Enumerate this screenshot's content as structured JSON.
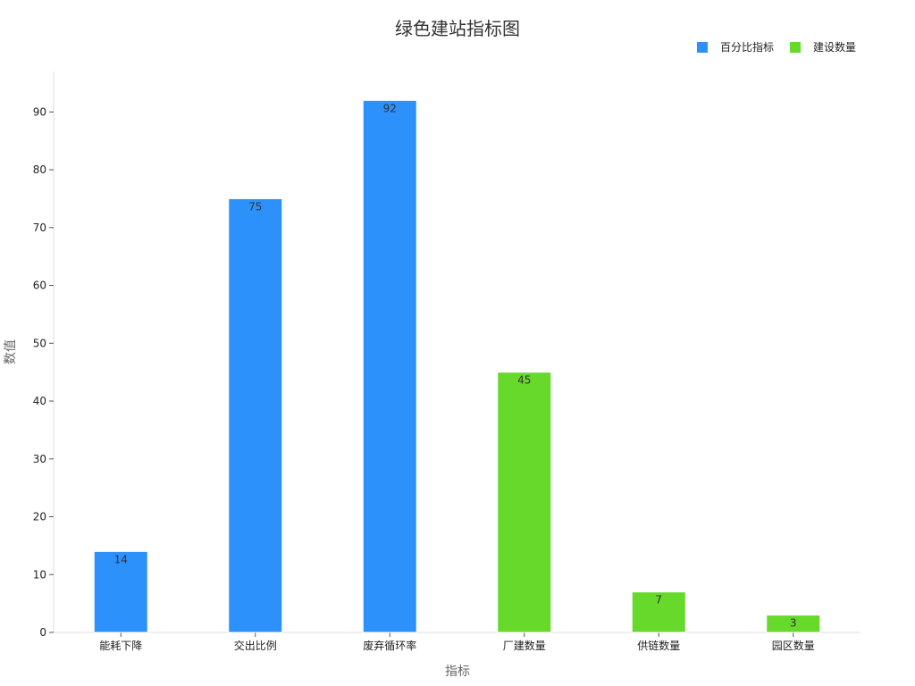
{
  "chart_data": {
    "type": "bar",
    "title": "绿色建站指标图",
    "xlabel": "指标",
    "ylabel": "数值",
    "categories": [
      "能耗下降",
      "交出比例",
      "废弃循环率",
      "厂建数量",
      "供链数量",
      "园区数量"
    ],
    "series": [
      {
        "name": "百分比指标",
        "color": "#2d91fb",
        "values": [
          14,
          75,
          92,
          null,
          null,
          null
        ]
      },
      {
        "name": "建设数量",
        "color": "#66d92a",
        "values": [
          null,
          null,
          null,
          45,
          7,
          3
        ]
      }
    ],
    "ylim": [
      0,
      97
    ],
    "yticks": [
      0,
      10,
      20,
      30,
      40,
      50,
      60,
      70,
      80,
      90
    ],
    "grid": false,
    "legend_position": "top-right",
    "data_labels": true
  }
}
